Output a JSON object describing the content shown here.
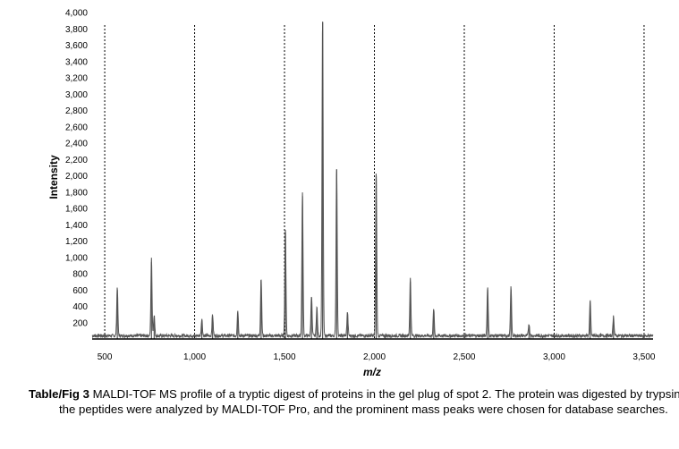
{
  "chart_data": {
    "type": "line",
    "title": "",
    "xlabel": "m/z",
    "ylabel": "Intensity",
    "xlim": [
      430,
      3550
    ],
    "ylim": [
      0,
      4000
    ],
    "x_ticks": [
      500,
      1000,
      1500,
      2000,
      2500,
      3000,
      3500
    ],
    "x_tick_labels": [
      "500",
      "1,000",
      "1,500",
      "2,000",
      "2,500",
      "3,000",
      "3,500"
    ],
    "y_ticks": [
      200,
      400,
      600,
      800,
      1000,
      1200,
      1400,
      1600,
      1800,
      2000,
      2200,
      2400,
      2600,
      2800,
      3000,
      3200,
      3400,
      3600,
      3800,
      4000
    ],
    "y_tick_labels": [
      "200",
      "400",
      "600",
      "800",
      "1,000",
      "1,200",
      "1,400",
      "1,600",
      "1,800",
      "2,000",
      "2,200",
      "2,400",
      "2,600",
      "2,800",
      "3,000",
      "3,200",
      "3,400",
      "3,600",
      "3,800",
      "4,000"
    ],
    "vertical_gridlines": "dotted at each x tick",
    "legend": "none",
    "baseline": 40,
    "series": [
      {
        "color": "#555555",
        "peaks": [
          {
            "x": 570,
            "y": 600
          },
          {
            "x": 760,
            "y": 940
          },
          {
            "x": 775,
            "y": 260
          },
          {
            "x": 1040,
            "y": 210
          },
          {
            "x": 1100,
            "y": 260
          },
          {
            "x": 1240,
            "y": 310
          },
          {
            "x": 1370,
            "y": 710
          },
          {
            "x": 1505,
            "y": 1300
          },
          {
            "x": 1600,
            "y": 1750
          },
          {
            "x": 1650,
            "y": 500
          },
          {
            "x": 1680,
            "y": 350
          },
          {
            "x": 1712,
            "y": 3880
          },
          {
            "x": 1790,
            "y": 2080
          },
          {
            "x": 1850,
            "y": 290
          },
          {
            "x": 2010,
            "y": 2000
          },
          {
            "x": 2200,
            "y": 700
          },
          {
            "x": 2330,
            "y": 330
          },
          {
            "x": 2630,
            "y": 600
          },
          {
            "x": 2760,
            "y": 600
          },
          {
            "x": 2860,
            "y": 150
          },
          {
            "x": 3200,
            "y": 420
          },
          {
            "x": 3330,
            "y": 240
          }
        ]
      }
    ]
  },
  "caption": {
    "lead": "Table/Fig 3",
    "text": " MALDI-TOF MS profile of a tryptic digest of proteins in the gel plug of spot 2. The protein was digested by trypsin; the peptides were analyzed by MALDI-TOF Pro, and the prominent mass peaks were chosen for database searches."
  }
}
